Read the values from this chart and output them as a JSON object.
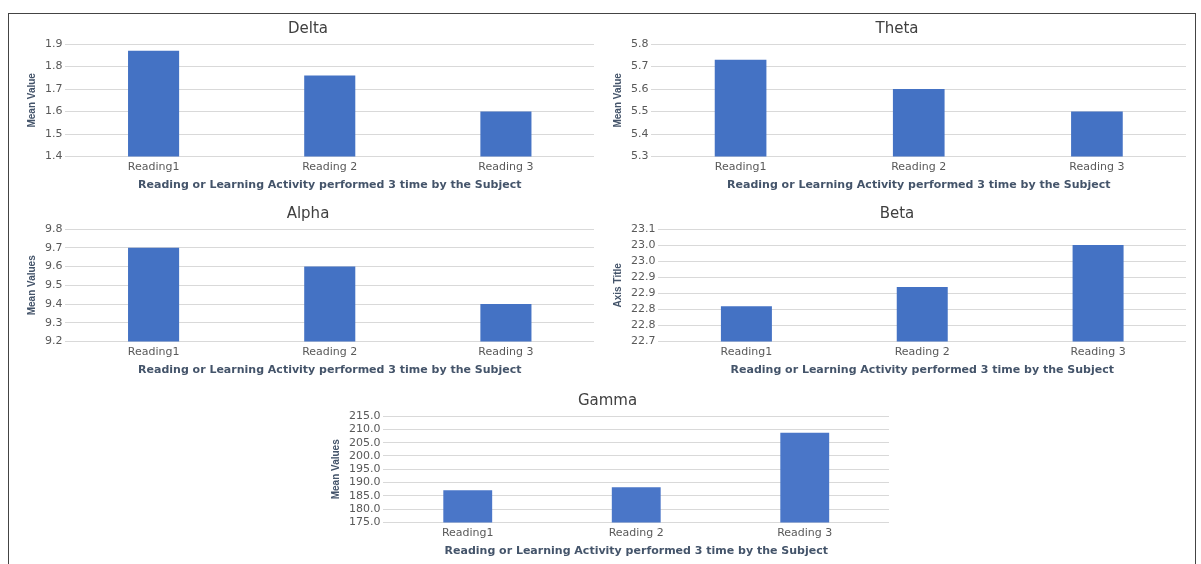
{
  "chart_data": [
    {
      "type": "bar",
      "title": "Delta",
      "xlabel": "Reading or Learning Activity performed 3 time by the Subject",
      "ylabel": "Mean Value",
      "categories": [
        "Reading1",
        "Reading 2",
        "Reading 3"
      ],
      "values": [
        1.87,
        1.76,
        1.6
      ],
      "color": "#4472c4",
      "ylim": [
        1.4,
        1.9
      ],
      "yticks": [
        1.4,
        1.5,
        1.6,
        1.7,
        1.8,
        1.9
      ],
      "grid": "y"
    },
    {
      "type": "bar",
      "title": "Theta",
      "xlabel": "Reading or Learning Activity performed 3 time by the Subject",
      "ylabel": "Mean Value",
      "categories": [
        "Reading1",
        "Reading 2",
        "Reading 3"
      ],
      "values": [
        5.73,
        5.6,
        5.5
      ],
      "color": "#4472c4",
      "ylim": [
        5.3,
        5.8
      ],
      "yticks": [
        5.3,
        5.4,
        5.5,
        5.6,
        5.7,
        5.8
      ],
      "grid": "y"
    },
    {
      "type": "bar",
      "title": "Alpha",
      "xlabel": "Reading or Learning Activity performed 3 time by the Subject",
      "ylabel": "Mean Values",
      "categories": [
        "Reading1",
        "Reading 2",
        "Reading 3"
      ],
      "values": [
        9.7,
        9.6,
        9.4
      ],
      "color": "#4472c4",
      "ylim": [
        9.2,
        9.8
      ],
      "yticks": [
        9.2,
        9.3,
        9.4,
        9.5,
        9.6,
        9.7,
        9.8
      ],
      "grid": "y"
    },
    {
      "type": "bar",
      "title": "Beta",
      "xlabel": "Reading or Learning Activity performed 3 time by the Subject",
      "ylabel": "Axis Title",
      "categories": [
        "Reading1",
        "Reading 2",
        "Reading 3"
      ],
      "values": [
        22.81,
        22.87,
        23.0
      ],
      "color": "#4472c4",
      "ylim": [
        22.7,
        23.05
      ],
      "yticks": [
        {
          "value": 22.7,
          "label": "22.7"
        },
        {
          "value": 22.75,
          "label": "22.8"
        },
        {
          "value": 22.8,
          "label": "22.8"
        },
        {
          "value": 22.85,
          "label": "22.9"
        },
        {
          "value": 22.9,
          "label": "22.9"
        },
        {
          "value": 22.95,
          "label": "23.0"
        },
        {
          "value": 23.0,
          "label": "23.0"
        },
        {
          "value": 23.05,
          "label": "23.1"
        }
      ],
      "grid": "y"
    },
    {
      "type": "bar",
      "title": "Gamma",
      "xlabel": "Reading or Learning Activity performed 3 time by the Subject",
      "ylabel": "Mean Values",
      "categories": [
        "Reading1",
        "Reading 2",
        "Reading 3"
      ],
      "values": [
        187.1,
        188.3,
        208.7
      ],
      "color": "#4a76c8",
      "ylim": [
        175,
        215
      ],
      "yticks": [
        {
          "value": 175,
          "label": "175.0"
        },
        {
          "value": 180,
          "label": "180.0"
        },
        {
          "value": 185,
          "label": "185.0"
        },
        {
          "value": 190,
          "label": "190.0"
        },
        {
          "value": 195,
          "label": "195.0"
        },
        {
          "value": 200,
          "label": "200.0"
        },
        {
          "value": 205,
          "label": "205.0"
        },
        {
          "value": 210,
          "label": "210.0"
        },
        {
          "value": 215,
          "label": "215.0"
        }
      ],
      "grid": "y"
    }
  ]
}
